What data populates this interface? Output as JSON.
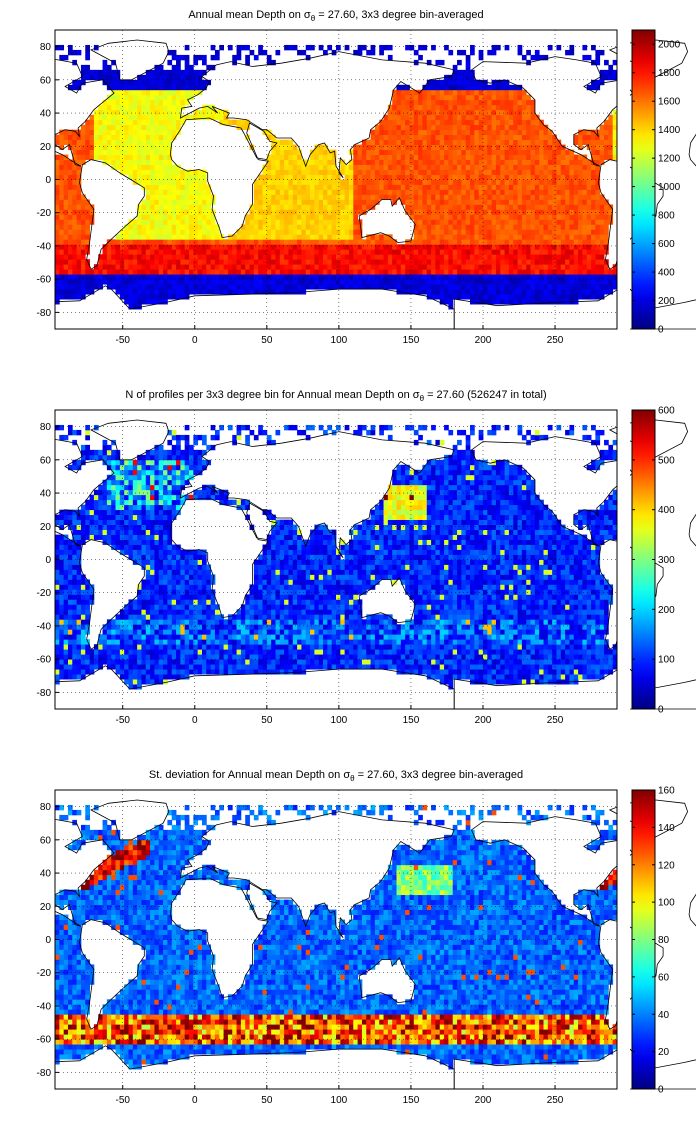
{
  "chart_data": [
    {
      "type": "heatmap",
      "title_prefix": "Annual mean Depth on ",
      "title_sigma": "σ",
      "title_sub": "θ",
      "title_suffix": " = 27.60, 3x3 degree bin-averaged",
      "xticks": [
        "-50",
        "0",
        "50",
        "100",
        "150",
        "200",
        "250"
      ],
      "yticks": [
        "80",
        "60",
        "40",
        "20",
        "0",
        "-20",
        "-40",
        "-60",
        "-80"
      ],
      "xlim": [
        -97,
        293
      ],
      "ylim": [
        -90,
        90
      ],
      "colorbar": {
        "min": 0,
        "max": 2100,
        "ticks": [
          "2000",
          "1800",
          "1600",
          "1400",
          "1200",
          "1000",
          "800",
          "600",
          "400",
          "200",
          "0"
        ]
      },
      "colormap": "jet",
      "grid": true
    },
    {
      "type": "heatmap",
      "title_prefix": "N of profiles per 3x3 degree bin for Annual mean Depth on ",
      "title_sigma": "σ",
      "title_sub": "θ",
      "title_suffix": " = 27.60 (526247 in total)",
      "xticks": [
        "-50",
        "0",
        "50",
        "100",
        "150",
        "200",
        "250"
      ],
      "yticks": [
        "80",
        "60",
        "40",
        "20",
        "0",
        "-20",
        "-40",
        "-60",
        "-80"
      ],
      "xlim": [
        -97,
        293
      ],
      "ylim": [
        -90,
        90
      ],
      "colorbar": {
        "min": 0,
        "max": 600,
        "ticks": [
          "600",
          "500",
          "400",
          "300",
          "200",
          "100",
          "0"
        ]
      },
      "colormap": "jet",
      "grid": true
    },
    {
      "type": "heatmap",
      "title_prefix": "St. deviation for Annual mean Depth on ",
      "title_sigma": "σ",
      "title_sub": "θ",
      "title_suffix": " = 27.60, 3x3 degree bin-averaged",
      "xticks": [
        "-50",
        "0",
        "50",
        "100",
        "150",
        "200",
        "250"
      ],
      "yticks": [
        "80",
        "60",
        "40",
        "20",
        "0",
        "-20",
        "-40",
        "-60",
        "-80"
      ],
      "xlim": [
        -97,
        293
      ],
      "ylim": [
        -90,
        90
      ],
      "colorbar": {
        "min": 0,
        "max": 160,
        "ticks": [
          "160",
          "140",
          "120",
          "100",
          "80",
          "60",
          "40",
          "20",
          "0"
        ]
      },
      "colormap": "jet",
      "grid": true
    }
  ]
}
